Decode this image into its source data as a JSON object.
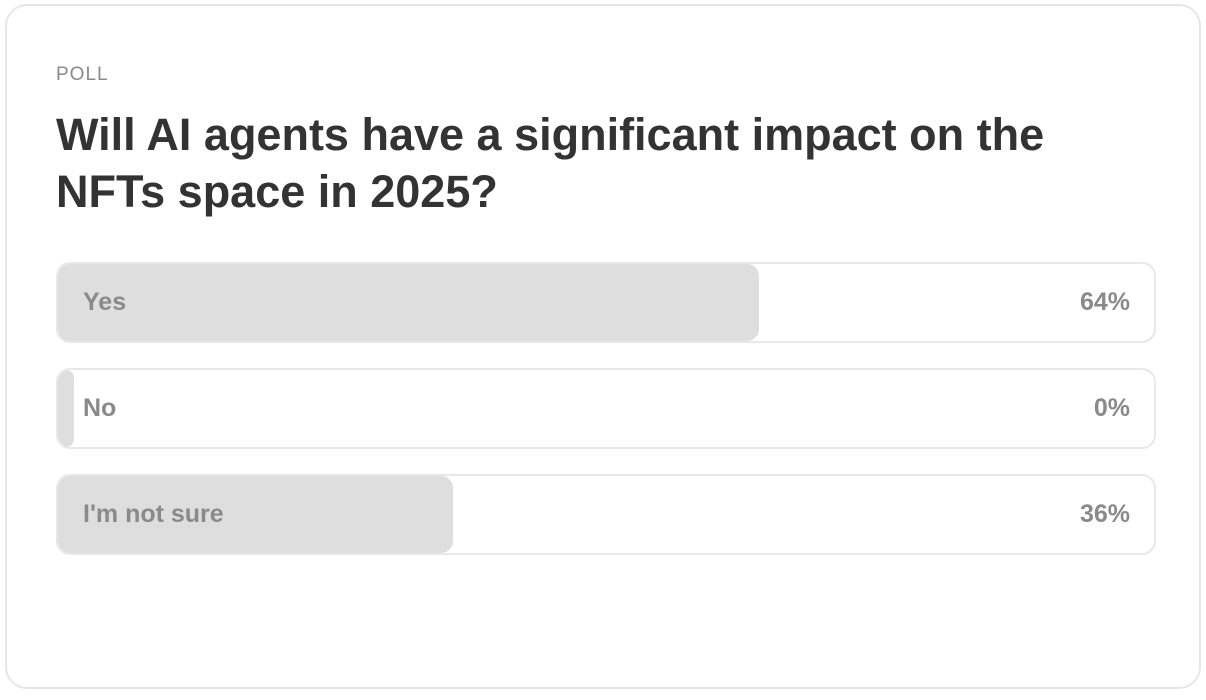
{
  "poll": {
    "kicker": "POLL",
    "question": "Will AI agents have a significant impact on the NFTs space in 2025?",
    "options": [
      {
        "label": "Yes",
        "value": 64,
        "value_label": "64%"
      },
      {
        "label": "No",
        "value": 0,
        "value_label": "0%"
      },
      {
        "label": "I'm not sure",
        "value": 36,
        "value_label": "36%"
      }
    ]
  }
}
